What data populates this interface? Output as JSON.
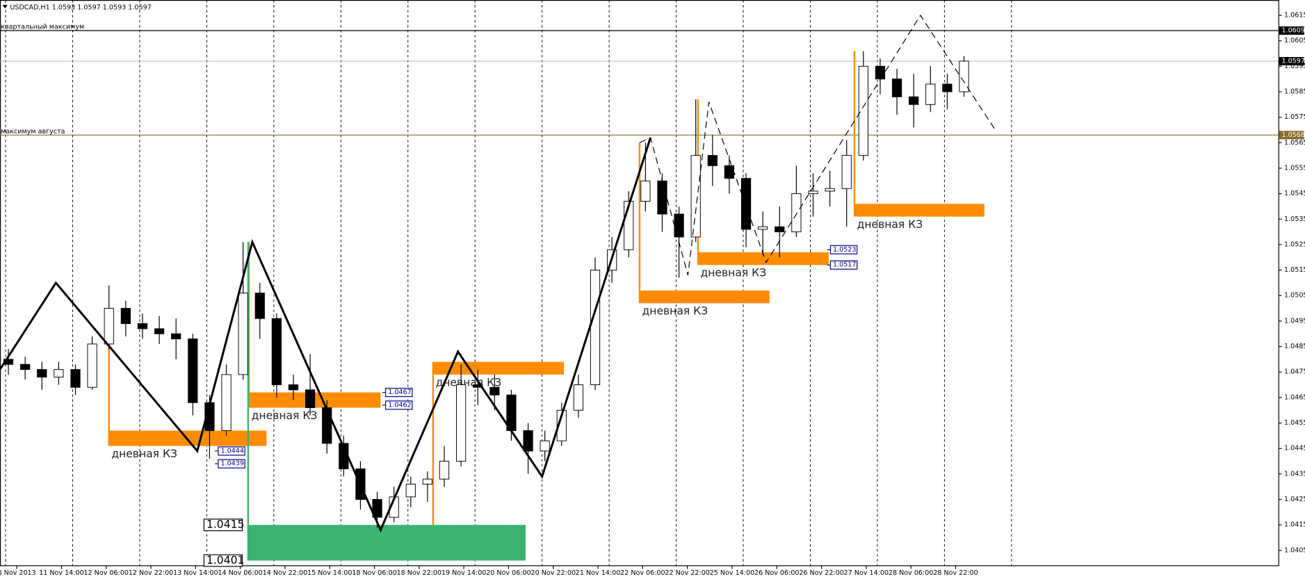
{
  "chart_data": {
    "type": "candlestick",
    "title": "USDCAD,H1  1.0593 1.0597 1.0593 1.0597",
    "xlim": [
      0,
      457.5
    ],
    "ylim": [
      1.0399,
      1.0621
    ],
    "yticks": [
      1.0405,
      1.0415,
      1.0425,
      1.0435,
      1.0445,
      1.0455,
      1.0465,
      1.0475,
      1.0485,
      1.0495,
      1.0505,
      1.0515,
      1.0525,
      1.0535,
      1.0545,
      1.0555,
      1.0565,
      1.0575,
      1.0585,
      1.0595,
      1.0605,
      1.0615
    ],
    "xticks": [
      {
        "value": 6,
        "label": "8 Nov 2013"
      },
      {
        "value": 22,
        "label": "11 Nov 14:00"
      },
      {
        "value": 38,
        "label": "12 Nov 06:00"
      },
      {
        "value": 54,
        "label": "12 Nov 22:00"
      },
      {
        "value": 70,
        "label": "13 Nov 14:00"
      },
      {
        "value": 86,
        "label": "14 Nov 06:00"
      },
      {
        "value": 102,
        "label": "14 Nov 22:00"
      },
      {
        "value": 118,
        "label": "15 Nov 14:00"
      },
      {
        "value": 134,
        "label": "18 Nov 06:00"
      },
      {
        "value": 150,
        "label": "18 Nov 22:00"
      },
      {
        "value": 166,
        "label": "19 Nov 14:00"
      },
      {
        "value": 182,
        "label": "20 Nov 06:00"
      },
      {
        "value": 198,
        "label": "20 Nov 22:00"
      },
      {
        "value": 214,
        "label": "21 Nov 14:00"
      },
      {
        "value": 230,
        "label": "22 Nov 06:00"
      },
      {
        "value": 246,
        "label": "22 Nov 22:00"
      },
      {
        "value": 262,
        "label": "25 Nov 14:00"
      },
      {
        "value": 278,
        "label": "26 Nov 06:00"
      },
      {
        "value": 294,
        "label": "26 Nov 22:00"
      },
      {
        "value": 310,
        "label": "27 Nov 14:00"
      },
      {
        "value": 326,
        "label": "28 Nov 06:00"
      },
      {
        "value": 342,
        "label": "28 Nov 22:00"
      }
    ],
    "xgrid": [
      2,
      26,
      50,
      74,
      98,
      122,
      146,
      170,
      194,
      218,
      242,
      266,
      290,
      314,
      338,
      362
    ],
    "x": [
      3,
      9,
      15,
      21,
      27,
      33,
      39,
      45,
      51,
      57,
      63,
      69,
      75,
      81,
      87,
      93,
      99,
      105,
      111,
      117,
      123,
      129,
      135,
      141,
      147,
      153,
      159,
      165,
      171,
      177,
      183,
      189,
      195,
      201,
      207,
      213,
      219,
      225,
      231,
      237,
      243,
      249,
      255,
      261,
      267,
      273,
      279,
      285,
      291,
      297,
      303,
      309,
      315,
      321,
      327,
      333,
      339,
      345
    ],
    "ohlc": [
      [
        1.048,
        1.0484,
        1.0474,
        1.0478
      ],
      [
        1.0478,
        1.0481,
        1.0472,
        1.0476
      ],
      [
        1.0476,
        1.0479,
        1.0468,
        1.0473
      ],
      [
        1.0473,
        1.0479,
        1.047,
        1.0476
      ],
      [
        1.0476,
        1.0478,
        1.0466,
        1.0469
      ],
      [
        1.0469,
        1.0489,
        1.0468,
        1.0486
      ],
      [
        1.0486,
        1.0509,
        1.0484,
        1.05
      ],
      [
        1.05,
        1.0503,
        1.0489,
        1.0494
      ],
      [
        1.0494,
        1.0498,
        1.0488,
        1.0492
      ],
      [
        1.0492,
        1.0497,
        1.0486,
        1.049
      ],
      [
        1.049,
        1.0496,
        1.048,
        1.0488
      ],
      [
        1.0488,
        1.049,
        1.0458,
        1.0463
      ],
      [
        1.0463,
        1.0466,
        1.0441,
        1.0452
      ],
      [
        1.0452,
        1.0478,
        1.045,
        1.0474
      ],
      [
        1.0474,
        1.0526,
        1.0472,
        1.0506
      ],
      [
        1.0506,
        1.051,
        1.0488,
        1.0496
      ],
      [
        1.0496,
        1.0498,
        1.0465,
        1.047
      ],
      [
        1.047,
        1.0474,
        1.0464,
        1.0468
      ],
      [
        1.0468,
        1.0482,
        1.0458,
        1.0461
      ],
      [
        1.0461,
        1.0464,
        1.0443,
        1.0447
      ],
      [
        1.0447,
        1.045,
        1.0434,
        1.0437
      ],
      [
        1.0437,
        1.044,
        1.0421,
        1.0425
      ],
      [
        1.0425,
        1.0428,
        1.0414,
        1.0418
      ],
      [
        1.0418,
        1.043,
        1.0416,
        1.0426
      ],
      [
        1.0426,
        1.0434,
        1.0422,
        1.0431
      ],
      [
        1.0431,
        1.0436,
        1.0424,
        1.0433
      ],
      [
        1.0433,
        1.0446,
        1.043,
        1.044
      ],
      [
        1.044,
        1.0478,
        1.0438,
        1.047
      ],
      [
        1.047,
        1.0476,
        1.0462,
        1.0469
      ],
      [
        1.0469,
        1.0474,
        1.046,
        1.0466
      ],
      [
        1.0466,
        1.0468,
        1.0448,
        1.0452
      ],
      [
        1.0452,
        1.0455,
        1.0435,
        1.0444
      ],
      [
        1.0444,
        1.0452,
        1.044,
        1.0448
      ],
      [
        1.0448,
        1.0463,
        1.0446,
        1.046
      ],
      [
        1.046,
        1.0474,
        1.0457,
        1.047
      ],
      [
        1.047,
        1.052,
        1.0468,
        1.0515
      ],
      [
        1.0515,
        1.0528,
        1.051,
        1.0523
      ],
      [
        1.0523,
        1.0546,
        1.052,
        1.0542
      ],
      [
        1.0542,
        1.0565,
        1.0538,
        1.055
      ],
      [
        1.055,
        1.0553,
        1.053,
        1.0537
      ],
      [
        1.0537,
        1.054,
        1.0512,
        1.0528
      ],
      [
        1.0528,
        1.0582,
        1.0526,
        1.056
      ],
      [
        1.056,
        1.0568,
        1.0548,
        1.0556
      ],
      [
        1.0556,
        1.056,
        1.0545,
        1.0551
      ],
      [
        1.0551,
        1.0553,
        1.0524,
        1.0531
      ],
      [
        1.0531,
        1.0538,
        1.0521,
        1.0532
      ],
      [
        1.0532,
        1.054,
        1.052,
        1.053
      ],
      [
        1.053,
        1.0556,
        1.0528,
        1.0545
      ],
      [
        1.0545,
        1.0553,
        1.0536,
        1.0546
      ],
      [
        1.0546,
        1.0554,
        1.054,
        1.0547
      ],
      [
        1.0547,
        1.0566,
        1.0532,
        1.056
      ],
      [
        1.056,
        1.0601,
        1.0558,
        1.0595
      ],
      [
        1.0595,
        1.0598,
        1.0584,
        1.059
      ],
      [
        1.059,
        1.0594,
        1.0576,
        1.0583
      ],
      [
        1.0583,
        1.0592,
        1.0571,
        1.058
      ],
      [
        1.058,
        1.0595,
        1.0577,
        1.0588
      ],
      [
        1.0588,
        1.0592,
        1.0578,
        1.0585
      ],
      [
        1.0585,
        1.0599,
        1.0583,
        1.0597
      ]
    ],
    "levels": [
      {
        "label": "квартальный максимум",
        "value": 1.0609,
        "color": "#000000"
      },
      {
        "label": "максимум августа",
        "value": 1.0568,
        "color": "#8b6a2a"
      }
    ],
    "bid": {
      "value": 1.0597,
      "color": "#c0c0c0"
    },
    "zigzag": {
      "x": [
        0,
        20,
        70.6,
        90.3,
        136.2,
        163.9,
        194,
        232.8
      ],
      "values": [
        1.0476,
        1.051,
        1.0444,
        1.0526,
        1.0413,
        1.0483,
        1.0434,
        1.0567
      ]
    },
    "projection": {
      "x": [
        228.9,
        232.8,
        246.2,
        253.7,
        274.2,
        329.4,
        356.2
      ],
      "values": [
        1.0565,
        1.0567,
        1.0513,
        1.0581,
        1.0518,
        1.0615,
        1.057
      ]
    },
    "zones": [
      {
        "label": "дневная КЗ",
        "x0": 38.7,
        "x1": 95.4,
        "top": 1.0452,
        "bottom": 1.0446,
        "stem": 1.05,
        "color": "#ff8c00"
      },
      {
        "label": "дневная КЗ",
        "x0": 88.8,
        "x1": 136.2,
        "top": 1.0467,
        "bottom": 1.0461,
        "stem": 1.0526,
        "color": "#ff8c00"
      },
      {
        "label": "дневная КЗ",
        "x0": 154.7,
        "x1": 201.8,
        "top": 1.0479,
        "bottom": 1.0474,
        "stem": 1.0415,
        "color": "#ff8c00"
      },
      {
        "label": "дневная КЗ",
        "x0": 228.6,
        "x1": 275.4,
        "top": 1.0507,
        "bottom": 1.0502,
        "stem": 1.0565,
        "color": "#ff8c00"
      },
      {
        "label": "дневная КЗ",
        "x0": 249.5,
        "x1": 296.6,
        "top": 1.0522,
        "bottom": 1.0517,
        "stem": 1.0582,
        "color": "#ff8c00"
      },
      {
        "label": "дневная КЗ",
        "x0": 305.5,
        "x1": 352.3,
        "top": 1.0541,
        "bottom": 1.0536,
        "stem": 1.0601,
        "color": "#ff8c00"
      },
      {
        "x0": 88.5,
        "x1": 188.1,
        "top": 1.0415,
        "bottom": 1.0401,
        "stem": 1.0526,
        "color": "#3cb371"
      }
    ],
    "price_labels": [
      {
        "x": 78.1,
        "value": 1.0444
      },
      {
        "x": 78.1,
        "value": 1.0439
      },
      {
        "x": 138,
        "value": 1.0467
      },
      {
        "x": 138,
        "value": 1.0462
      },
      {
        "x": 297.2,
        "value": 1.0523
      },
      {
        "x": 297.2,
        "value": 1.0517
      }
    ],
    "big_labels": [
      {
        "x": 73,
        "value": 1.0415
      },
      {
        "x": 73,
        "value": 1.0401
      }
    ]
  }
}
